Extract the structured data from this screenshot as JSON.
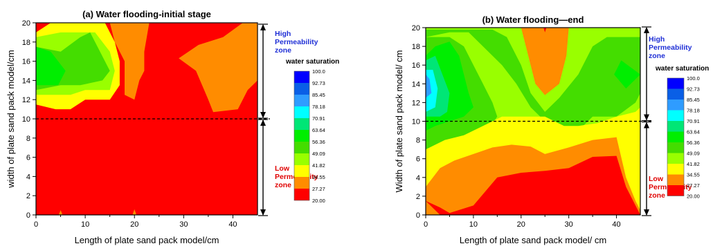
{
  "chart_data": [
    {
      "type": "heatmap",
      "title": "(a) Water flooding-initial stage",
      "xlabel": "Length of plate sand pack model/cm",
      "ylabel": "width of  plate sand pack model/cm",
      "xlim": [
        0,
        45
      ],
      "ylim": [
        0,
        20
      ],
      "xticks": [
        0,
        10,
        20,
        30,
        40
      ],
      "yticks": [
        0,
        2,
        4,
        6,
        8,
        10,
        12,
        14,
        16,
        18,
        20
      ],
      "divider_y": 10,
      "zones": {
        "high": "High Permeability zone",
        "low": "Low Permeability zone"
      },
      "legend_title": "water saturation",
      "levels": [
        "100.0",
        "92.73",
        "85.45",
        "78.18",
        "70.91",
        "63.64",
        "56.36",
        "49.09",
        "41.82",
        "34.55",
        "27.27",
        "20.00"
      ],
      "colors": [
        "#0000ff",
        "#0a5fe6",
        "#2f9cff",
        "#00ffff",
        "#00e676",
        "#00ee00",
        "#44dd00",
        "#99ff00",
        "#ffff00",
        "#ff8c00",
        "#ff0000"
      ],
      "regions": [
        {
          "level": "27.27-34.55",
          "points": [
            [
              0,
              20
            ],
            [
              15,
              20
            ],
            [
              16,
              18
            ],
            [
              18,
              16
            ],
            [
              18,
              12.5
            ],
            [
              20,
              12
            ],
            [
              21,
              14
            ],
            [
              22,
              15
            ],
            [
              22,
              17
            ],
            [
              23,
              20
            ],
            [
              0,
              20
            ]
          ]
        },
        {
          "level": "34.55-41.82",
          "points": [
            [
              0,
              19
            ],
            [
              3,
              20
            ],
            [
              14,
              20
            ],
            [
              16,
              18
            ],
            [
              17,
              16
            ],
            [
              17,
              13.5
            ],
            [
              15,
              12
            ],
            [
              10,
              12
            ],
            [
              7,
              11
            ],
            [
              4,
              11
            ],
            [
              0,
              11.5
            ]
          ]
        },
        {
          "level": "41.82-49.09",
          "points": [
            [
              0,
              18.5
            ],
            [
              5,
              19
            ],
            [
              12,
              19
            ],
            [
              15,
              17
            ],
            [
              16,
              15
            ],
            [
              15,
              13
            ],
            [
              10,
              13
            ],
            [
              7,
              12.5
            ],
            [
              4,
              12.5
            ],
            [
              0,
              12.5
            ]
          ]
        },
        {
          "level": "49.09-56.36",
          "points": [
            [
              0,
              17.5
            ],
            [
              5,
              17
            ],
            [
              9,
              18.5
            ],
            [
              11,
              19
            ],
            [
              12,
              18
            ],
            [
              14,
              16
            ],
            [
              15,
              15
            ],
            [
              13.5,
              14
            ],
            [
              9,
              13.5
            ],
            [
              5,
              13.5
            ],
            [
              0,
              13
            ]
          ]
        },
        {
          "level": "56.36-63.64",
          "points": [
            [
              0,
              17.5
            ],
            [
              3,
              17
            ],
            [
              6,
              15
            ],
            [
              4.5,
              13.5
            ],
            [
              0,
              13.5
            ]
          ]
        },
        {
          "level": "27.27-34.55",
          "points": [
            [
              29,
              16.3
            ],
            [
              33,
              17.7
            ],
            [
              38,
              18.5
            ],
            [
              42,
              20
            ],
            [
              45,
              20
            ],
            [
              45,
              14
            ],
            [
              43,
              13
            ],
            [
              41,
              11
            ],
            [
              36,
              10.7
            ],
            [
              35,
              12
            ],
            [
              32.5,
              15
            ]
          ]
        },
        {
          "level": "27.27-34.55",
          "points": [
            [
              4.6,
              0
            ],
            [
              5,
              0.5
            ],
            [
              5.4,
              0
            ]
          ]
        },
        {
          "level": "27.27-34.55",
          "points": [
            [
              19.6,
              0
            ],
            [
              20,
              0.6
            ],
            [
              20.4,
              0
            ]
          ]
        }
      ]
    },
    {
      "type": "heatmap",
      "title": "(b) Water flooding—end",
      "xlabel": "Length of plate sand pack model/ cm",
      "ylabel": "Width of plate sand pack model/ cm",
      "xlim": [
        0,
        45
      ],
      "ylim": [
        0,
        20
      ],
      "xticks": [
        0,
        10,
        20,
        30,
        40
      ],
      "yticks": [
        0,
        2,
        4,
        6,
        8,
        10,
        12,
        14,
        16,
        18,
        20
      ],
      "divider_y": 10,
      "zones": {
        "high": "High Permeability zone",
        "low": "Low Permeability zone"
      },
      "legend_title": "water saturation",
      "levels": [
        "100.0",
        "92.73",
        "85.45",
        "78.18",
        "70.91",
        "63.64",
        "56.36",
        "49.09",
        "41.82",
        "34.55",
        "27.27",
        "20.00"
      ],
      "colors": [
        "#0000ff",
        "#0a5fe6",
        "#2f9cff",
        "#00ffff",
        "#00e676",
        "#00ee00",
        "#44dd00",
        "#99ff00",
        "#ffff00",
        "#ff8c00",
        "#ff0000"
      ],
      "regions": [
        {
          "level": "41.82-49.09",
          "points": [
            [
              0,
              20
            ],
            [
              45,
              20
            ],
            [
              45,
              0
            ],
            [
              0,
              0
            ]
          ]
        },
        {
          "level": "49.09-56.36",
          "points": [
            [
              0,
              19
            ],
            [
              5,
              19.5
            ],
            [
              9,
              19.5
            ],
            [
              12,
              18
            ],
            [
              16,
              16
            ],
            [
              19,
              14
            ],
            [
              22,
              11.5
            ],
            [
              25,
              10
            ],
            [
              29,
              9
            ],
            [
              32,
              9
            ],
            [
              35,
              10.5
            ],
            [
              40,
              10.5
            ],
            [
              44,
              12
            ],
            [
              45,
              13
            ],
            [
              45,
              19
            ],
            [
              38,
              19
            ],
            [
              35,
              18
            ],
            [
              32,
              15
            ],
            [
              28,
              12.5
            ],
            [
              25,
              11
            ],
            [
              22,
              13
            ],
            [
              20,
              16
            ],
            [
              17,
              19
            ],
            [
              14,
              19.8
            ],
            [
              0,
              19.8
            ]
          ]
        },
        {
          "level": "49.09-56.36",
          "points": [
            [
              0,
              19
            ],
            [
              5,
              19
            ],
            [
              8,
              18
            ],
            [
              10,
              16
            ],
            [
              12,
              14
            ],
            [
              14,
              12
            ],
            [
              15,
              10.5
            ],
            [
              13,
              9
            ],
            [
              10,
              8.5
            ],
            [
              5,
              7.5
            ],
            [
              2,
              6.5
            ],
            [
              0,
              5.5
            ]
          ]
        },
        {
          "level": "56.36-63.64",
          "points": [
            [
              0,
              17
            ],
            [
              2,
              18
            ],
            [
              5,
              18.5
            ],
            [
              7,
              17
            ],
            [
              8,
              15
            ],
            [
              9,
              13
            ],
            [
              10,
              11.5
            ],
            [
              8,
              10.5
            ],
            [
              5,
              10
            ],
            [
              2,
              9.5
            ],
            [
              0,
              9
            ]
          ]
        },
        {
          "level": "56.36-63.64",
          "points": [
            [
              39.5,
              15
            ],
            [
              41,
              16.5
            ],
            [
              45,
              15
            ],
            [
              42,
              13.5
            ]
          ]
        },
        {
          "level": "63.64-70.91",
          "points": [
            [
              0,
              16.5
            ],
            [
              2,
              17
            ],
            [
              3.5,
              15
            ],
            [
              5,
              13
            ],
            [
              4.5,
              11
            ],
            [
              3,
              10.5
            ],
            [
              0,
              10.5
            ]
          ]
        },
        {
          "level": "70.91-78.18",
          "points": [
            [
              0,
              15.5
            ],
            [
              1.5,
              15.5
            ],
            [
              2.5,
              13.5
            ],
            [
              2,
              11.5
            ],
            [
              0,
              11
            ]
          ]
        },
        {
          "level": "78.18-85.45",
          "points": [
            [
              0,
              15
            ],
            [
              0.8,
              14.5
            ],
            [
              1.2,
              13
            ],
            [
              0,
              12.5
            ]
          ]
        },
        {
          "level": "34.55-41.82",
          "points": [
            [
              0,
              7
            ],
            [
              4,
              8
            ],
            [
              8,
              8.5
            ],
            [
              12,
              9.5
            ],
            [
              16,
              10.5
            ],
            [
              20,
              10.5
            ],
            [
              25,
              10.5
            ],
            [
              29,
              9.5
            ],
            [
              32,
              9.5
            ],
            [
              36,
              9.8
            ],
            [
              40,
              10.5
            ],
            [
              44,
              11
            ],
            [
              45,
              11.5
            ],
            [
              45,
              0
            ],
            [
              0,
              0
            ]
          ]
        },
        {
          "level": "27.27-34.55",
          "points": [
            [
              0,
              3
            ],
            [
              3,
              5
            ],
            [
              6,
              5.8
            ],
            [
              10,
              6.5
            ],
            [
              14,
              7.2
            ],
            [
              18,
              7.5
            ],
            [
              22,
              7.3
            ],
            [
              25,
              6.5
            ],
            [
              30,
              7.2
            ],
            [
              35,
              8
            ],
            [
              40,
              8.3
            ],
            [
              42,
              4
            ],
            [
              44,
              1.5
            ],
            [
              45,
              0.5
            ],
            [
              45,
              0
            ],
            [
              0,
              0
            ]
          ]
        },
        {
          "level": "20.00-27.27",
          "points": [
            [
              0,
              1.5
            ],
            [
              3,
              0
            ],
            [
              45,
              0
            ],
            [
              42,
              3
            ],
            [
              40,
              6.3
            ],
            [
              35,
              6.2
            ],
            [
              30,
              5
            ],
            [
              25,
              4.7
            ],
            [
              20,
              4.5
            ],
            [
              15,
              4
            ],
            [
              10,
              1
            ],
            [
              5,
              0.2
            ],
            [
              3,
              0.8
            ],
            [
              0,
              1.5
            ]
          ]
        },
        {
          "level": "27.27-34.55",
          "points": [
            [
              20,
              20
            ],
            [
              21,
              18
            ],
            [
              23,
              14
            ],
            [
              25,
              12.8
            ],
            [
              28,
              14
            ],
            [
              29.5,
              17
            ],
            [
              30,
              20
            ]
          ]
        },
        {
          "level": "20.00-27.27",
          "points": [
            [
              24.7,
              20
            ],
            [
              25,
              19.5
            ],
            [
              25.3,
              20
            ]
          ]
        }
      ]
    }
  ]
}
